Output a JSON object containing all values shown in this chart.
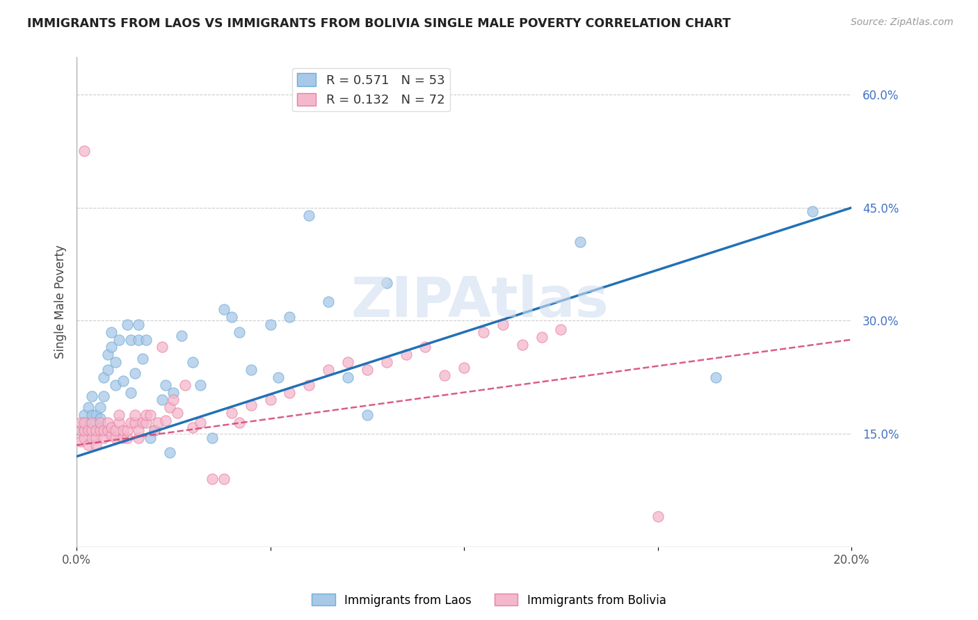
{
  "title": "IMMIGRANTS FROM LAOS VS IMMIGRANTS FROM BOLIVIA SINGLE MALE POVERTY CORRELATION CHART",
  "source": "Source: ZipAtlas.com",
  "ylabel": "Single Male Poverty",
  "xlim": [
    0.0,
    0.2
  ],
  "ylim": [
    0.0,
    0.65
  ],
  "x_ticks": [
    0.0,
    0.05,
    0.1,
    0.15,
    0.2
  ],
  "x_tick_labels": [
    "0.0%",
    "",
    "",
    "",
    "20.0%"
  ],
  "y_tick_labels_right": [
    "15.0%",
    "30.0%",
    "45.0%",
    "60.0%"
  ],
  "y_ticks_right": [
    0.15,
    0.3,
    0.45,
    0.6
  ],
  "legend_laos": "R = 0.571   N = 53",
  "legend_bolivia": "R = 0.132   N = 72",
  "legend_label_laos": "Immigrants from Laos",
  "legend_label_bolivia": "Immigrants from Bolivia",
  "laos_color": "#a8c8e8",
  "laos_edge_color": "#6baed6",
  "bolivia_color": "#f4b8cc",
  "bolivia_edge_color": "#e87fa0",
  "laos_line_color": "#2171b5",
  "bolivia_line_color": "#d44070",
  "background_color": "#ffffff",
  "watermark": "ZIPAtlas",
  "laos_line_x0": 0.0,
  "laos_line_y0": 0.12,
  "laos_line_x1": 0.2,
  "laos_line_y1": 0.45,
  "bolivia_line_x0": 0.0,
  "bolivia_line_y0": 0.135,
  "bolivia_line_x1": 0.2,
  "bolivia_line_y1": 0.275,
  "laos_scatter_x": [
    0.001,
    0.002,
    0.002,
    0.003,
    0.004,
    0.004,
    0.005,
    0.005,
    0.006,
    0.006,
    0.007,
    0.007,
    0.008,
    0.008,
    0.009,
    0.009,
    0.01,
    0.01,
    0.011,
    0.012,
    0.013,
    0.014,
    0.014,
    0.015,
    0.016,
    0.016,
    0.017,
    0.018,
    0.019,
    0.02,
    0.022,
    0.023,
    0.024,
    0.025,
    0.027,
    0.03,
    0.032,
    0.035,
    0.038,
    0.04,
    0.042,
    0.045,
    0.05,
    0.052,
    0.055,
    0.06,
    0.065,
    0.07,
    0.075,
    0.08,
    0.13,
    0.165,
    0.19
  ],
  "laos_scatter_y": [
    0.155,
    0.165,
    0.175,
    0.185,
    0.175,
    0.2,
    0.165,
    0.175,
    0.17,
    0.185,
    0.2,
    0.225,
    0.235,
    0.255,
    0.265,
    0.285,
    0.215,
    0.245,
    0.275,
    0.22,
    0.295,
    0.205,
    0.275,
    0.23,
    0.275,
    0.295,
    0.25,
    0.275,
    0.145,
    0.155,
    0.195,
    0.215,
    0.125,
    0.205,
    0.28,
    0.245,
    0.215,
    0.145,
    0.315,
    0.305,
    0.285,
    0.235,
    0.295,
    0.225,
    0.305,
    0.44,
    0.325,
    0.225,
    0.175,
    0.35,
    0.405,
    0.225,
    0.445
  ],
  "bolivia_scatter_x": [
    0.001,
    0.001,
    0.001,
    0.002,
    0.002,
    0.002,
    0.003,
    0.003,
    0.004,
    0.004,
    0.004,
    0.005,
    0.005,
    0.005,
    0.006,
    0.006,
    0.007,
    0.007,
    0.008,
    0.008,
    0.009,
    0.009,
    0.01,
    0.01,
    0.011,
    0.011,
    0.012,
    0.012,
    0.013,
    0.013,
    0.014,
    0.015,
    0.015,
    0.016,
    0.016,
    0.017,
    0.018,
    0.018,
    0.019,
    0.02,
    0.021,
    0.022,
    0.023,
    0.024,
    0.025,
    0.026,
    0.028,
    0.03,
    0.032,
    0.035,
    0.038,
    0.04,
    0.042,
    0.045,
    0.05,
    0.055,
    0.06,
    0.065,
    0.07,
    0.075,
    0.08,
    0.085,
    0.09,
    0.095,
    0.1,
    0.105,
    0.11,
    0.115,
    0.12,
    0.125,
    0.002,
    0.15
  ],
  "bolivia_scatter_y": [
    0.14,
    0.155,
    0.165,
    0.145,
    0.155,
    0.165,
    0.135,
    0.155,
    0.145,
    0.155,
    0.165,
    0.135,
    0.145,
    0.155,
    0.155,
    0.165,
    0.145,
    0.155,
    0.155,
    0.165,
    0.148,
    0.158,
    0.145,
    0.155,
    0.165,
    0.175,
    0.145,
    0.155,
    0.145,
    0.155,
    0.165,
    0.165,
    0.175,
    0.145,
    0.155,
    0.165,
    0.165,
    0.175,
    0.175,
    0.155,
    0.165,
    0.265,
    0.168,
    0.185,
    0.195,
    0.178,
    0.215,
    0.158,
    0.165,
    0.09,
    0.09,
    0.178,
    0.165,
    0.188,
    0.195,
    0.205,
    0.215,
    0.235,
    0.245,
    0.235,
    0.245,
    0.255,
    0.265,
    0.228,
    0.238,
    0.285,
    0.295,
    0.268,
    0.278,
    0.288,
    0.525,
    0.04
  ]
}
